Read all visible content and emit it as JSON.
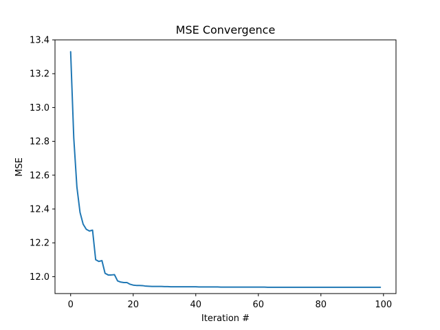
{
  "chart_data": {
    "type": "line",
    "title": "MSE Convergence",
    "xlabel": "Iteration #",
    "ylabel": "MSE",
    "xlim": [
      -5,
      104
    ],
    "ylim": [
      11.9,
      13.4
    ],
    "xticks": [
      0,
      20,
      40,
      60,
      80,
      100
    ],
    "yticks": [
      12.0,
      12.2,
      12.4,
      12.6,
      12.8,
      13.0,
      13.2,
      13.4
    ],
    "grid": false,
    "series": [
      {
        "color": "#1f77b4",
        "x": [
          0,
          1,
          2,
          3,
          4,
          5,
          6,
          7,
          8,
          9,
          10,
          11,
          12,
          13,
          14,
          15,
          16,
          17,
          18,
          19,
          20,
          21,
          22,
          23,
          24,
          25,
          26,
          27,
          28,
          29,
          30,
          31,
          32,
          33,
          34,
          35,
          36,
          37,
          38,
          39,
          40,
          41,
          42,
          43,
          44,
          45,
          46,
          47,
          48,
          49,
          50,
          51,
          52,
          53,
          54,
          55,
          56,
          57,
          58,
          59,
          60,
          61,
          62,
          63,
          64,
          65,
          66,
          67,
          68,
          69,
          70,
          71,
          72,
          73,
          74,
          75,
          76,
          77,
          78,
          79,
          80,
          81,
          82,
          83,
          84,
          85,
          86,
          87,
          88,
          89,
          90,
          91,
          92,
          93,
          94,
          95,
          96,
          97,
          98,
          99
        ],
        "y": [
          13.33,
          12.82,
          12.53,
          12.38,
          12.31,
          12.28,
          12.27,
          12.275,
          12.1,
          12.09,
          12.095,
          12.02,
          12.01,
          12.01,
          12.012,
          11.975,
          11.968,
          11.965,
          11.965,
          11.955,
          11.95,
          11.948,
          11.948,
          11.947,
          11.944,
          11.943,
          11.942,
          11.942,
          11.942,
          11.942,
          11.941,
          11.941,
          11.94,
          11.94,
          11.94,
          11.94,
          11.94,
          11.94,
          11.94,
          11.94,
          11.94,
          11.939,
          11.939,
          11.939,
          11.939,
          11.939,
          11.939,
          11.939,
          11.938,
          11.938,
          11.938,
          11.938,
          11.938,
          11.938,
          11.938,
          11.938,
          11.938,
          11.938,
          11.938,
          11.938,
          11.938,
          11.938,
          11.938,
          11.937,
          11.937,
          11.937,
          11.937,
          11.937,
          11.937,
          11.937,
          11.937,
          11.937,
          11.937,
          11.937,
          11.937,
          11.937,
          11.937,
          11.937,
          11.937,
          11.937,
          11.937,
          11.937,
          11.937,
          11.937,
          11.937,
          11.937,
          11.937,
          11.937,
          11.937,
          11.937,
          11.937,
          11.937,
          11.937,
          11.937,
          11.937,
          11.937,
          11.937,
          11.937,
          11.937,
          11.937
        ]
      }
    ]
  }
}
